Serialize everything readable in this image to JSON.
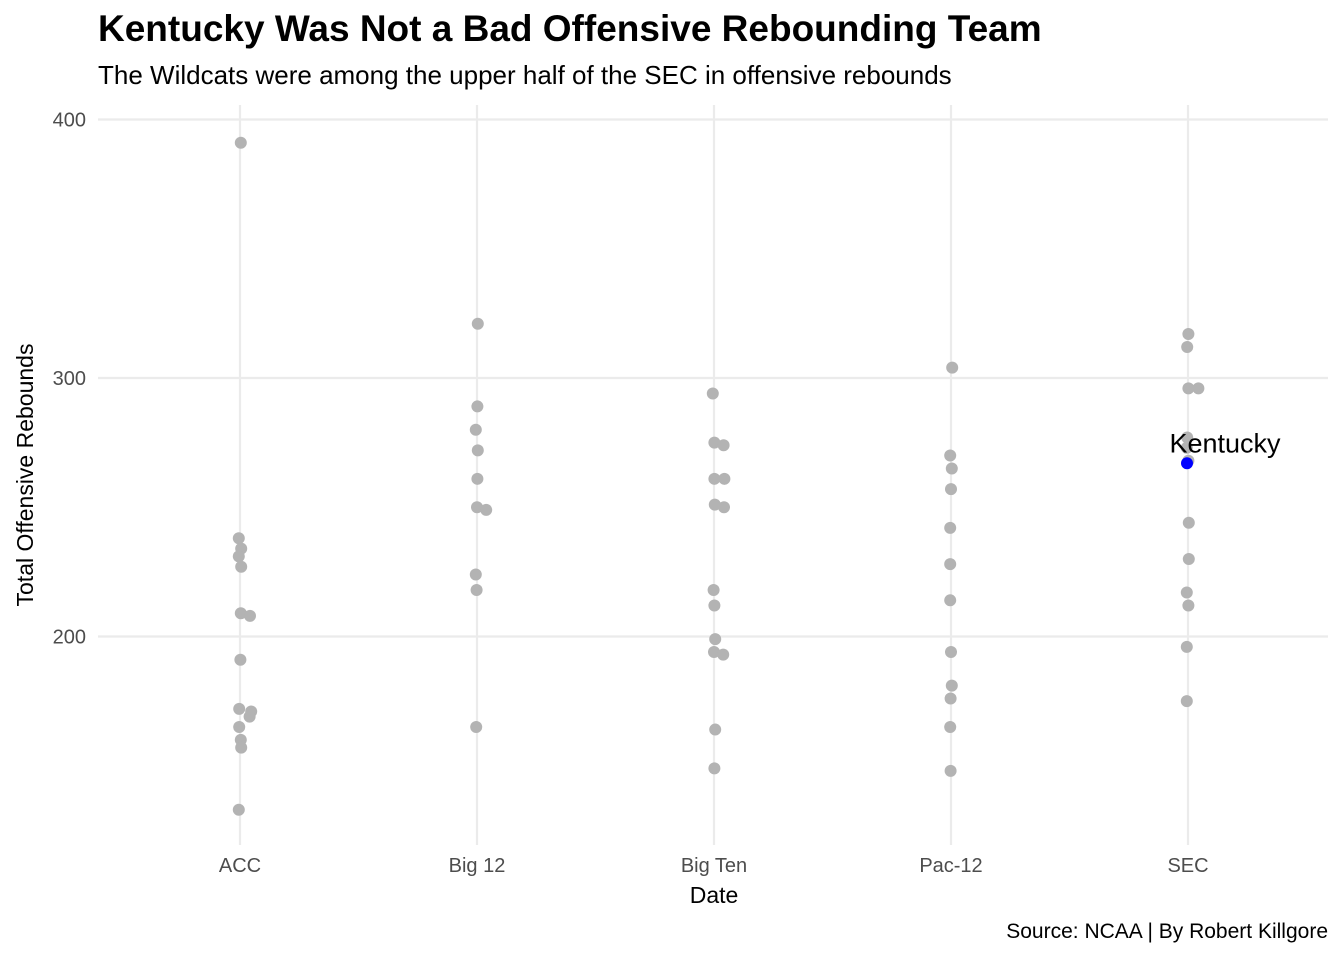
{
  "chart_data": {
    "type": "scatter",
    "title": "Kentucky Was Not a Bad Offensive Rebounding Team",
    "subtitle": "The Wildcats were among the upper half of the SEC in offensive rebounds",
    "caption": "Source: NCAA | By Robert Killgore",
    "xlabel": "Date",
    "ylabel": "Total Offensive Rebounds",
    "categories": [
      "ACC",
      "Big 12",
      "Big Ten",
      "Pac-12",
      "SEC"
    ],
    "ylim": [
      128,
      408
    ],
    "yticks": [
      200,
      300,
      400
    ],
    "grid": true,
    "point_color": "#b3b3b3",
    "highlight_color": "#0000ff",
    "points": [
      {
        "category": "ACC",
        "value": 391
      },
      {
        "category": "ACC",
        "value": 238
      },
      {
        "category": "ACC",
        "value": 234
      },
      {
        "category": "ACC",
        "value": 231
      },
      {
        "category": "ACC",
        "value": 227
      },
      {
        "category": "ACC",
        "value": 209
      },
      {
        "category": "ACC",
        "value": 208
      },
      {
        "category": "ACC",
        "value": 191
      },
      {
        "category": "ACC",
        "value": 172
      },
      {
        "category": "ACC",
        "value": 171
      },
      {
        "category": "ACC",
        "value": 169
      },
      {
        "category": "ACC",
        "value": 165
      },
      {
        "category": "ACC",
        "value": 160
      },
      {
        "category": "ACC",
        "value": 157
      },
      {
        "category": "ACC",
        "value": 133
      },
      {
        "category": "Big 12",
        "value": 321
      },
      {
        "category": "Big 12",
        "value": 289
      },
      {
        "category": "Big 12",
        "value": 280
      },
      {
        "category": "Big 12",
        "value": 272
      },
      {
        "category": "Big 12",
        "value": 261
      },
      {
        "category": "Big 12",
        "value": 250
      },
      {
        "category": "Big 12",
        "value": 249
      },
      {
        "category": "Big 12",
        "value": 224
      },
      {
        "category": "Big 12",
        "value": 218
      },
      {
        "category": "Big 12",
        "value": 165
      },
      {
        "category": "Big Ten",
        "value": 294
      },
      {
        "category": "Big Ten",
        "value": 275
      },
      {
        "category": "Big Ten",
        "value": 274
      },
      {
        "category": "Big Ten",
        "value": 261
      },
      {
        "category": "Big Ten",
        "value": 261
      },
      {
        "category": "Big Ten",
        "value": 251
      },
      {
        "category": "Big Ten",
        "value": 250
      },
      {
        "category": "Big Ten",
        "value": 218
      },
      {
        "category": "Big Ten",
        "value": 212
      },
      {
        "category": "Big Ten",
        "value": 199
      },
      {
        "category": "Big Ten",
        "value": 194
      },
      {
        "category": "Big Ten",
        "value": 193
      },
      {
        "category": "Big Ten",
        "value": 164
      },
      {
        "category": "Big Ten",
        "value": 149
      },
      {
        "category": "Pac-12",
        "value": 304
      },
      {
        "category": "Pac-12",
        "value": 270
      },
      {
        "category": "Pac-12",
        "value": 265
      },
      {
        "category": "Pac-12",
        "value": 257
      },
      {
        "category": "Pac-12",
        "value": 242
      },
      {
        "category": "Pac-12",
        "value": 228
      },
      {
        "category": "Pac-12",
        "value": 214
      },
      {
        "category": "Pac-12",
        "value": 194
      },
      {
        "category": "Pac-12",
        "value": 181
      },
      {
        "category": "Pac-12",
        "value": 176
      },
      {
        "category": "Pac-12",
        "value": 165
      },
      {
        "category": "Pac-12",
        "value": 148
      },
      {
        "category": "SEC",
        "value": 317
      },
      {
        "category": "SEC",
        "value": 312
      },
      {
        "category": "SEC",
        "value": 296
      },
      {
        "category": "SEC",
        "value": 296
      },
      {
        "category": "SEC",
        "value": 277
      },
      {
        "category": "SEC",
        "value": 273
      },
      {
        "category": "SEC",
        "value": 268
      },
      {
        "category": "SEC",
        "value": 244
      },
      {
        "category": "SEC",
        "value": 230
      },
      {
        "category": "SEC",
        "value": 217
      },
      {
        "category": "SEC",
        "value": 212
      },
      {
        "category": "SEC",
        "value": 196
      },
      {
        "category": "SEC",
        "value": 175
      }
    ],
    "highlight": {
      "category": "SEC",
      "value": 267,
      "label": "Kentucky"
    }
  }
}
